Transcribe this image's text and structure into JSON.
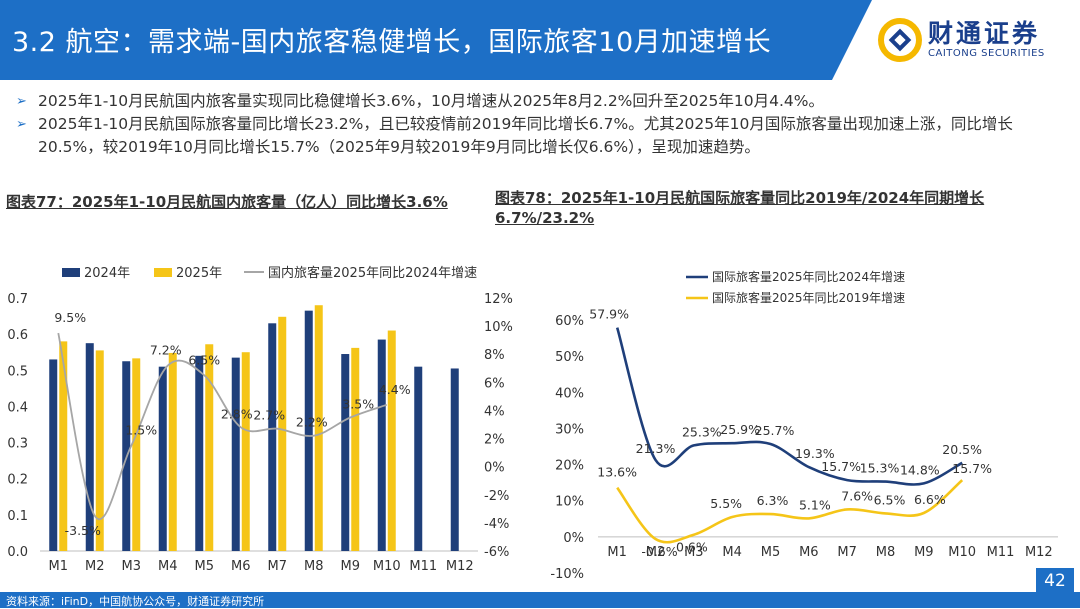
{
  "header": {
    "title": "3.2 航空：需求端-国内旅客稳健增长，国际旅客10月加速增长"
  },
  "logo": {
    "cn": "财通证券",
    "en": "CAITONG SECURITIES"
  },
  "bullets": [
    "2025年1-10月民航国内旅客量实现同比稳健增长3.6%，10月增速从2025年8月2.2%回升至2025年10月4.4%。",
    "2025年1-10月民航国际旅客量同比增长23.2%，且已较疫情前2019年同比增长6.7%。尤其2025年10月国际旅客量出现加速上涨，同比增长20.5%，较2019年10月同比增长15.7%（2025年9月较2019年9月同比增长仅6.6%），呈现加速趋势。"
  ],
  "colors": {
    "blue": "#1d6fc6",
    "navy": "#1f3f7a",
    "gold": "#f5c518",
    "grey": "#a6a6a6"
  },
  "chart77_title": "图表77：2025年1-10月民航国内旅客量（亿人）同比增长3.6%",
  "chart78_title": "图表78：2025年1-10月民航国际旅客量同比2019年/2024年同期增长6.7%/23.2%",
  "chart_data": [
    {
      "type": "bar",
      "title": "图表77：2025年1-10月民航国内旅客量（亿人）同比增长3.6%",
      "categories": [
        "M1",
        "M2",
        "M3",
        "M4",
        "M5",
        "M6",
        "M7",
        "M8",
        "M9",
        "M10",
        "M11",
        "M12"
      ],
      "series": [
        {
          "name": "2024年",
          "values": [
            0.53,
            0.575,
            0.525,
            0.51,
            0.54,
            0.535,
            0.63,
            0.665,
            0.545,
            0.585,
            0.51,
            0.505
          ]
        },
        {
          "name": "2025年",
          "values": [
            0.58,
            0.555,
            0.533,
            0.548,
            0.572,
            0.55,
            0.648,
            0.68,
            0.562,
            0.61,
            null,
            null
          ]
        },
        {
          "name": "国内旅客量2025年同比2024年增速",
          "type": "line",
          "axis": "right",
          "values": [
            9.5,
            -3.5,
            1.5,
            7.2,
            6.5,
            2.8,
            2.7,
            2.2,
            3.5,
            4.4,
            null,
            null
          ],
          "labels": [
            "9.5%",
            "-3.5%",
            "1.5%",
            "7.2%",
            "6.5%",
            "2.8%",
            "2.7%",
            "2.2%",
            "3.5%",
            "4.4%",
            "",
            ""
          ]
        }
      ],
      "ylim": [
        0,
        0.7
      ],
      "yticks": [
        "0.0",
        "0.1",
        "0.2",
        "0.3",
        "0.4",
        "0.5",
        "0.6",
        "0.7"
      ],
      "y2lim": [
        -6,
        12
      ],
      "y2ticks": [
        "-6%",
        "-4%",
        "-2%",
        "0%",
        "2%",
        "4%",
        "6%",
        "8%",
        "10%",
        "12%"
      ]
    },
    {
      "type": "line",
      "title": "图表78：2025年1-10月民航国际旅客量同比2019年/2024年同期增长6.7%/23.2%",
      "categories": [
        "M1",
        "M2",
        "M3",
        "M4",
        "M5",
        "M6",
        "M7",
        "M8",
        "M9",
        "M10",
        "M11",
        "M12"
      ],
      "series": [
        {
          "name": "国际旅客量2025年同比2024年增速",
          "values": [
            57.9,
            21.3,
            25.3,
            25.9,
            25.7,
            19.3,
            15.7,
            15.3,
            14.8,
            20.5,
            null,
            null
          ],
          "labels": [
            "57.9%",
            "21.3%",
            "25.3%",
            "25.9%",
            "25.7%",
            "19.3%",
            "15.7%",
            "15.3%",
            "14.8%",
            "20.5%",
            "",
            ""
          ]
        },
        {
          "name": "国际旅客量2025年同比2019年增速",
          "values": [
            13.6,
            -0.6,
            0.6,
            5.5,
            6.3,
            5.1,
            7.6,
            6.5,
            6.6,
            15.7,
            null,
            null
          ],
          "labels": [
            "13.6%",
            "-0.6%",
            "0.6%",
            "5.5%",
            "6.3%",
            "5.1%",
            "7.6%",
            "6.5%",
            "6.6%",
            "15.7%",
            "",
            ""
          ]
        }
      ],
      "ylim": [
        -10,
        60
      ],
      "yticks": [
        "-10%",
        "0%",
        "10%",
        "20%",
        "30%",
        "40%",
        "50%",
        "60%"
      ]
    }
  ],
  "footer": {
    "source": "资料来源：iFinD，中国航协公众号，财通证券研究所",
    "page": "42"
  }
}
